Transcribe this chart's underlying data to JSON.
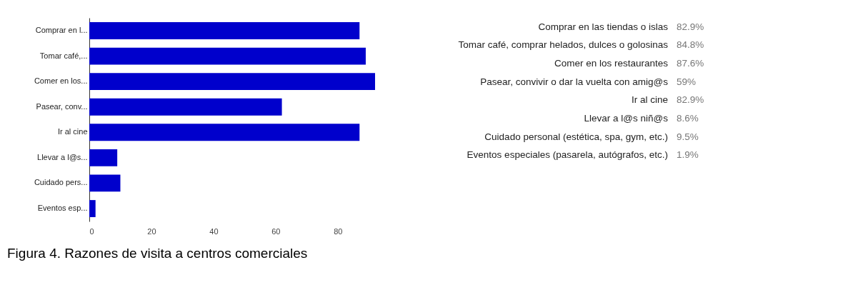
{
  "chart_data": [
    {
      "type": "bar",
      "orientation": "horizontal",
      "categories": [
        "Comprar en l...",
        "Tomar café,...",
        "Comer en los...",
        "Pasear, conv...",
        "Ir al cine",
        "Llevar a l@s...",
        "Cuidado pers...",
        "Eventos esp..."
      ],
      "values": [
        87,
        89,
        92,
        62,
        87,
        9,
        10,
        2
      ],
      "color": "#0000cc",
      "xlim": [
        0,
        92
      ],
      "xticks": [
        0,
        20,
        40,
        60,
        80
      ],
      "grid": false,
      "annotations": [
        "Figura 4. Razones de visita a centros comerciales"
      ]
    },
    {
      "type": "other",
      "annotations": [
        "Comprar en las tiendas o islas",
        "Tomar café, comprar helados, dulces o golosinas",
        "Comer en los restaurantes",
        "Pasear, convivir o dar la vuelta con amig@s",
        "Ir al cine",
        "Llevar a l@s niñ@s",
        "Cuidado personal (estética, spa, gym, etc.)",
        "Eventos especiales (pasarela, autógrafos, etc.)",
        "82.9%",
        "84.8%",
        "87.6%",
        "59%",
        "82.9%",
        "8.6%",
        "9.5%",
        "1.9%"
      ]
    }
  ]
}
